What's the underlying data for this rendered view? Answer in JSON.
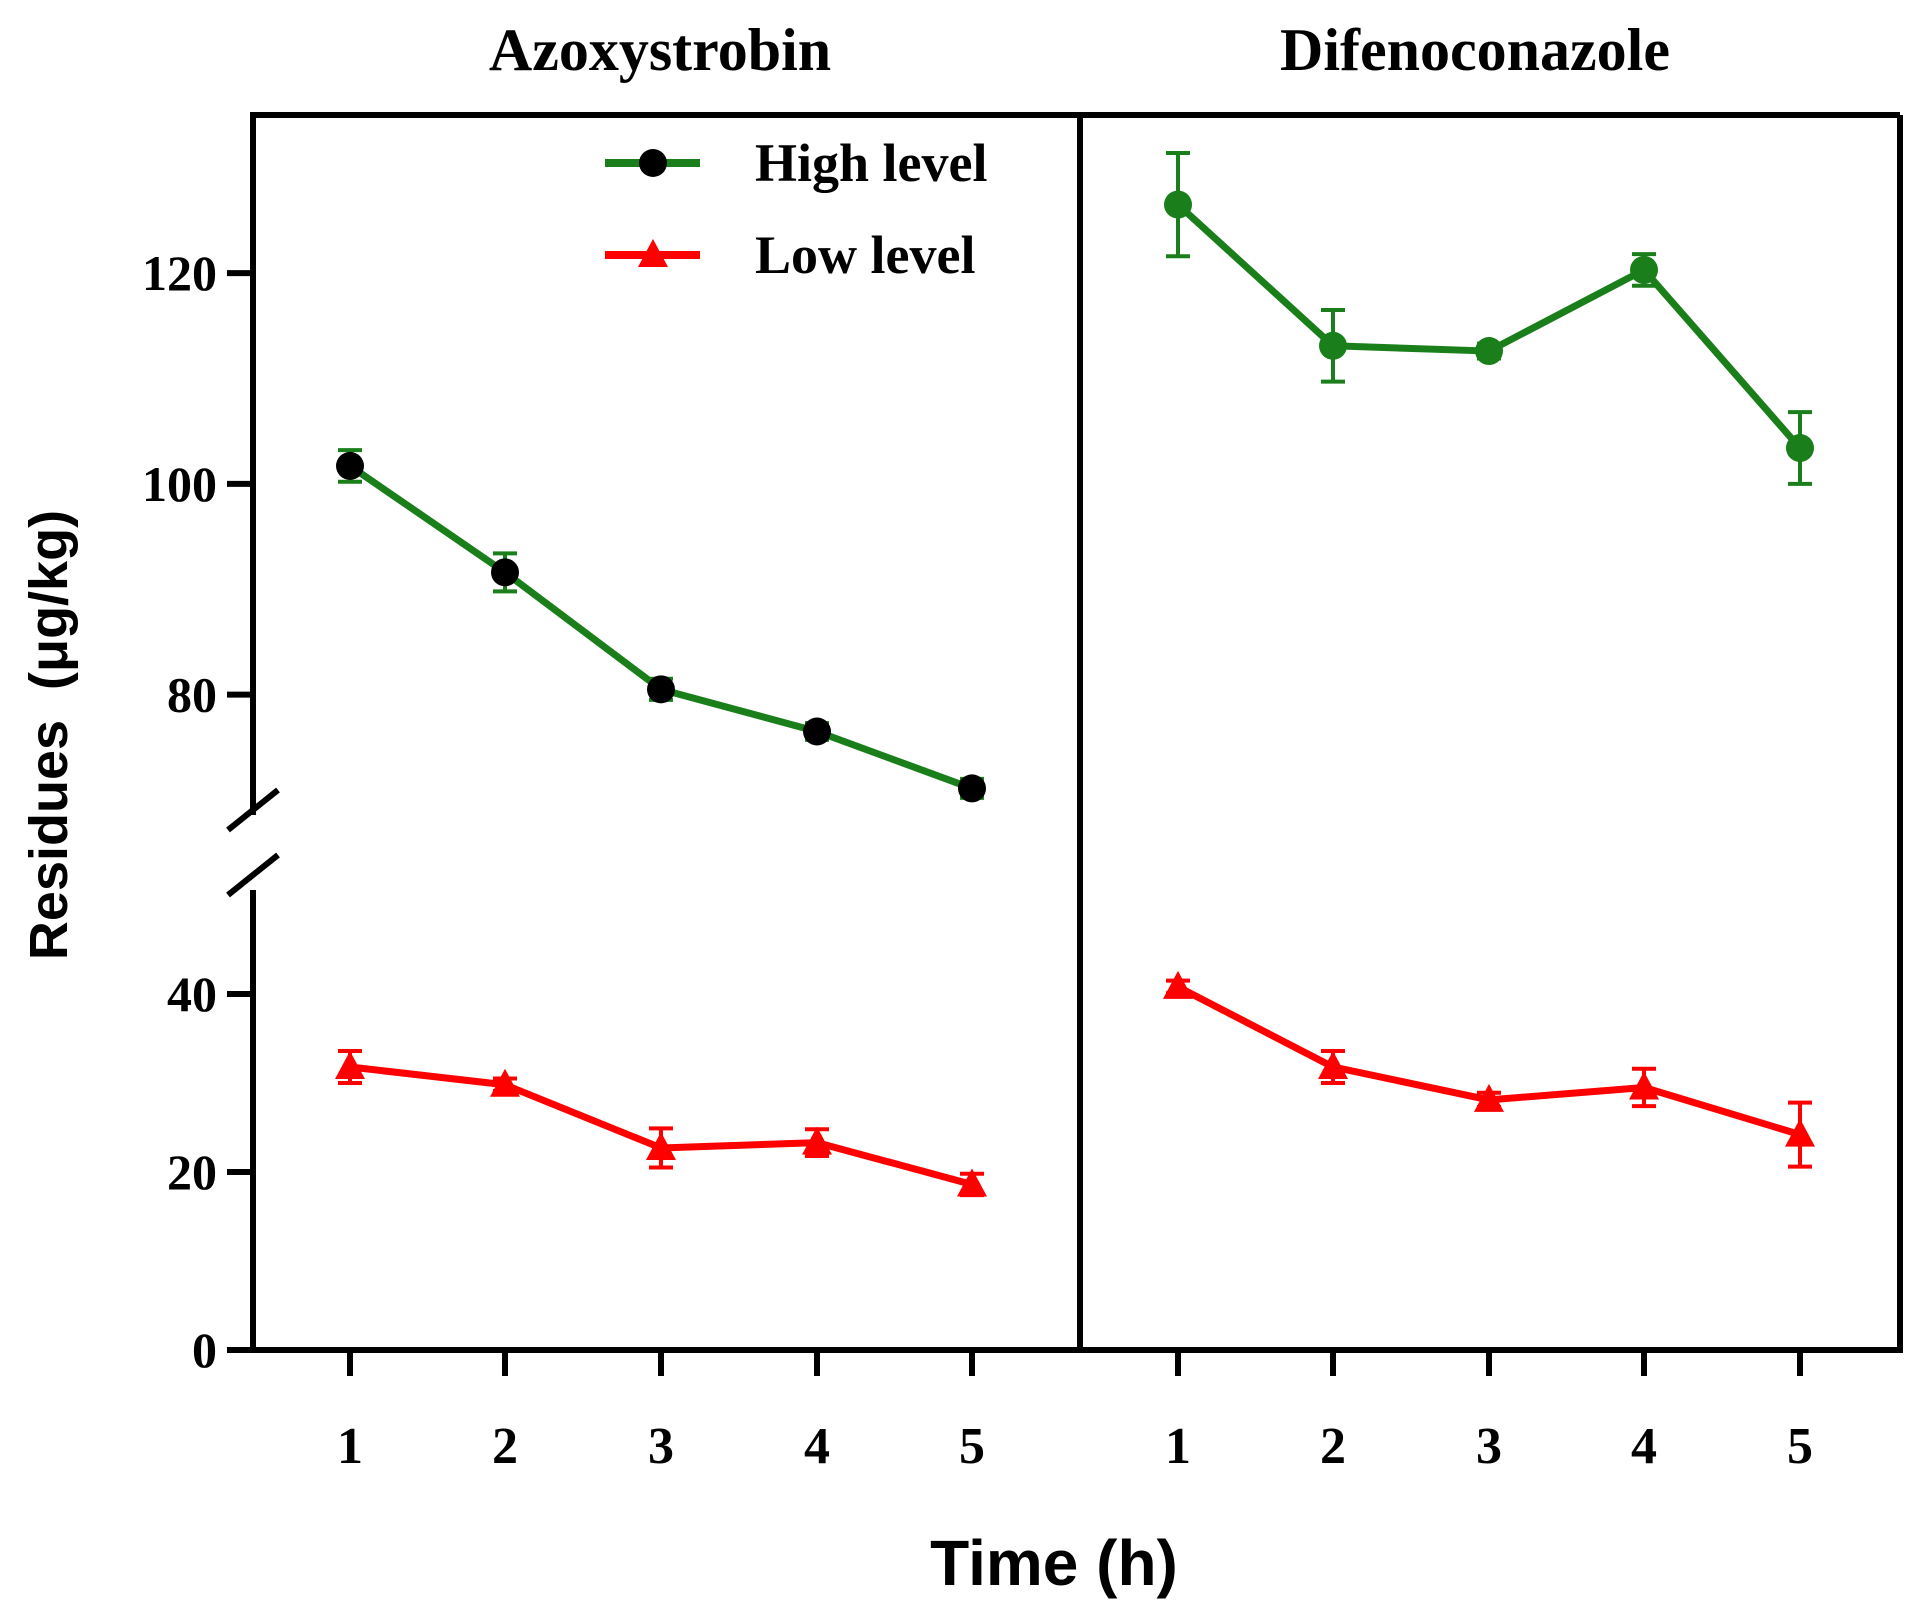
{
  "chart_data": {
    "type": "line",
    "xlabel": "Time (h)",
    "ylabel": "Residues  (μg/kg)",
    "y_axis_break": [
      50,
      70
    ],
    "y_ticks": [
      0,
      20,
      40,
      80,
      100,
      120
    ],
    "ylim": [
      0,
      135
    ],
    "legend": {
      "position": "top-right of left panel",
      "entries": [
        {
          "label": "High level",
          "marker": "circle",
          "color": "#1a7f1a"
        },
        {
          "label": "Low level",
          "marker": "triangle",
          "color": "#ff0000"
        }
      ]
    },
    "panels": [
      {
        "title": "Azoxystrobin",
        "categories": [
          "1",
          "2",
          "3",
          "4",
          "5"
        ],
        "series": [
          {
            "name": "High level",
            "marker": "circle",
            "line_color": "#1a7f1a",
            "marker_color": "#000000",
            "values": [
              101.7,
              91.6,
              80.5,
              76.5,
              71.1
            ],
            "errors": [
              1.5,
              1.8,
              1.0,
              0.8,
              0.9
            ]
          },
          {
            "name": "Low level",
            "marker": "triangle",
            "line_color": "#ff0000",
            "marker_color": "#ff0000",
            "values": [
              31.8,
              29.8,
              22.7,
              23.3,
              18.6
            ],
            "errors": [
              1.8,
              0.7,
              2.2,
              1.5,
              1.2
            ]
          }
        ]
      },
      {
        "title": "Difenoconazole",
        "categories": [
          "1",
          "2",
          "3",
          "4",
          "5"
        ],
        "series": [
          {
            "name": "High level",
            "marker": "circle",
            "line_color": "#1a7f1a",
            "marker_color": "#1a7f1a",
            "values": [
              126.5,
              113.1,
              112.6,
              120.3,
              103.4
            ],
            "errors": [
              4.9,
              3.4,
              0.7,
              1.5,
              3.4
            ]
          },
          {
            "name": "Low level",
            "marker": "triangle",
            "line_color": "#ff0000",
            "marker_color": "#ff0000",
            "values": [
              40.8,
              31.8,
              28.1,
              29.5,
              24.2
            ],
            "errors": [
              0.7,
              1.8,
              0.8,
              2.1,
              3.6
            ]
          }
        ]
      }
    ]
  }
}
